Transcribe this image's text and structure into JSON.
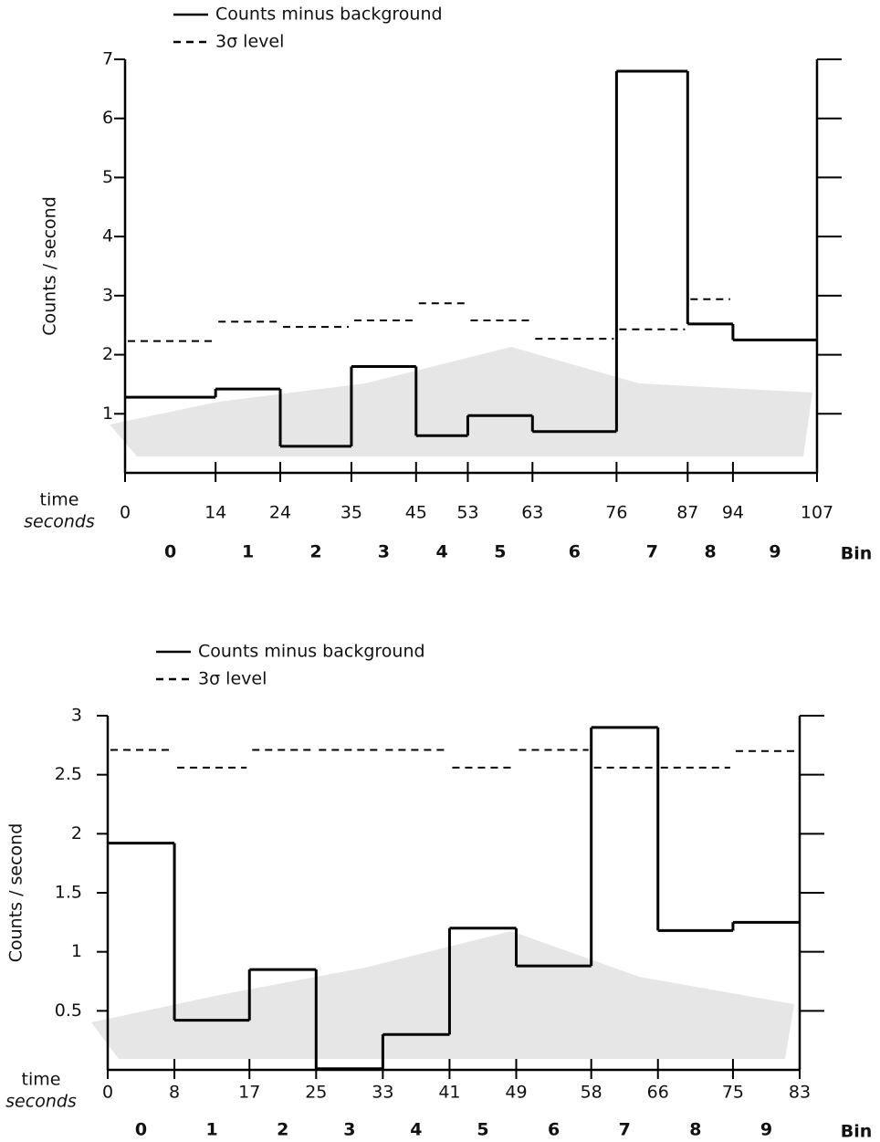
{
  "chart_data": [
    {
      "type": "step",
      "ylabel": "Counts / second",
      "xlabel": "time",
      "xunit": "seconds",
      "category_label": "Bin",
      "bins": [
        0,
        14,
        24,
        35,
        45,
        53,
        63,
        76,
        87,
        94,
        107
      ],
      "categories": [
        "0",
        "1",
        "2",
        "3",
        "4",
        "5",
        "6",
        "7",
        "8",
        "9"
      ],
      "series": [
        {
          "name": "Counts minus background",
          "color": "#000000",
          "dash": false,
          "values": [
            1.28,
            1.42,
            0.45,
            1.8,
            0.63,
            0.97,
            0.7,
            6.8,
            2.52,
            2.25
          ]
        },
        {
          "name": "3σ level",
          "color": "#000000",
          "dash": true,
          "values": [
            2.23,
            2.56,
            2.47,
            2.58,
            2.87,
            2.58,
            2.27,
            2.43,
            2.94,
            2.25
          ]
        }
      ],
      "ylim": [
        0,
        7
      ],
      "yticks": [
        1,
        2,
        3,
        4,
        5,
        6,
        7
      ]
    },
    {
      "type": "step",
      "ylabel": "Counts / second",
      "xlabel": "time",
      "xunit": "seconds",
      "category_label": "Bin",
      "bins": [
        0,
        8,
        17,
        25,
        33,
        41,
        49,
        58,
        66,
        75,
        83
      ],
      "categories": [
        "0",
        "1",
        "2",
        "3",
        "4",
        "5",
        "6",
        "7",
        "8",
        "9"
      ],
      "series": [
        {
          "name": "Counts minus background",
          "color": "#000000",
          "dash": false,
          "values": [
            1.92,
            0.42,
            0.85,
            0.01,
            0.3,
            1.2,
            0.88,
            2.9,
            1.18,
            1.25
          ]
        },
        {
          "name": "3σ level",
          "color": "#000000",
          "dash": true,
          "values": [
            2.71,
            2.56,
            2.71,
            2.71,
            2.71,
            2.56,
            2.71,
            2.56,
            2.56,
            2.7
          ]
        }
      ],
      "ylim": [
        0,
        3
      ],
      "yticks": [
        0.5,
        1,
        1.5,
        2,
        2.5,
        3
      ]
    }
  ]
}
